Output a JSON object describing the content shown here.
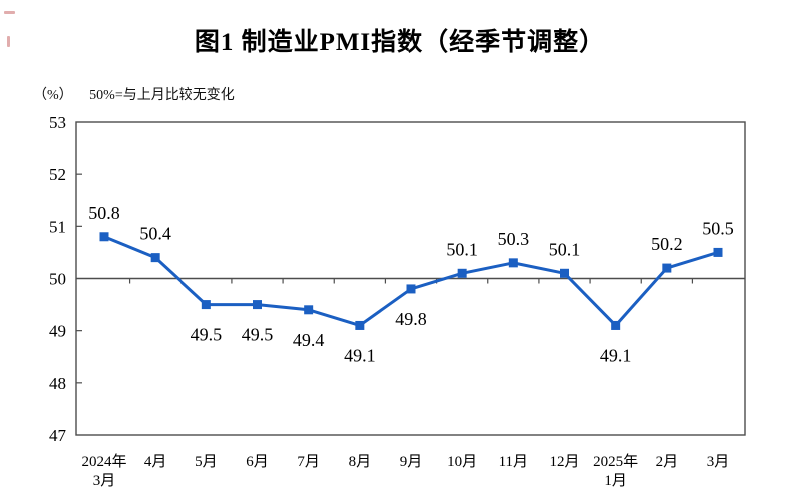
{
  "chart_data": {
    "type": "line",
    "title": "图1 制造业PMI指数（经季节调整）",
    "unit": "（%）",
    "subtitle": "50%=与上月比较无变化",
    "categories": [
      [
        "2024年",
        "3月"
      ],
      "4月",
      "5月",
      "6月",
      "7月",
      "8月",
      "9月",
      "10月",
      "11月",
      "12月",
      [
        "2025年",
        "1月"
      ],
      "2月",
      "3月"
    ],
    "values": [
      50.8,
      50.4,
      49.5,
      49.5,
      49.4,
      49.1,
      49.8,
      50.1,
      50.3,
      50.1,
      49.1,
      50.2,
      50.5
    ],
    "series_name": "制造业PMI指数",
    "ylim": [
      47,
      53
    ],
    "yticks": [
      47,
      48,
      49,
      50,
      51,
      52,
      53
    ],
    "reference_line": 50,
    "marker": "square",
    "grid": false,
    "legend": "none",
    "colors": {
      "line": "#1b5fc2",
      "axis": "#4d4d4d",
      "text": "#000000",
      "background": "#ffffff"
    }
  }
}
